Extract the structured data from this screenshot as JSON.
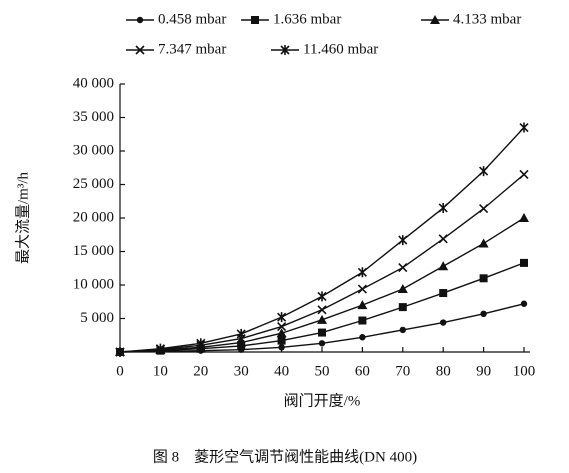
{
  "chart_data": {
    "type": "line",
    "caption": "图 8　菱形空气调节阀性能曲线(DN 400)",
    "x_label": "阀门开度/%",
    "y_label": "最大流量/m³/h",
    "x": [
      0,
      10,
      20,
      30,
      40,
      50,
      60,
      70,
      80,
      90,
      100
    ],
    "xlim": [
      0,
      100
    ],
    "xticks": [
      0,
      10,
      20,
      30,
      40,
      50,
      60,
      70,
      80,
      90,
      100
    ],
    "ylim": [
      0,
      40000
    ],
    "yticks": [
      {
        "value": 5000,
        "label": "5 000"
      },
      {
        "value": 10000,
        "label": "10 000"
      },
      {
        "value": 15000,
        "label": "15 000"
      },
      {
        "value": 20000,
        "label": "20 000"
      },
      {
        "value": 25000,
        "label": "25 000"
      },
      {
        "value": 30000,
        "label": "30 000"
      },
      {
        "value": 35000,
        "label": "35 000"
      },
      {
        "value": 40000,
        "label": "40 000"
      }
    ],
    "series": [
      {
        "name": "0.458 mbar",
        "color": "#111111",
        "marker": "circle",
        "values": [
          0,
          100,
          200,
          350,
          700,
          1300,
          2200,
          3300,
          4400,
          5700,
          7200
        ]
      },
      {
        "name": "1.636 mbar",
        "color": "#111111",
        "marker": "square",
        "values": [
          0,
          200,
          500,
          900,
          1700,
          2900,
          4700,
          6700,
          8800,
          11000,
          13300
        ]
      },
      {
        "name": "4.133 mbar",
        "color": "#111111",
        "marker": "triangle",
        "values": [
          0,
          300,
          700,
          1400,
          2800,
          4800,
          7000,
          9400,
          12800,
          16200,
          20000
        ]
      },
      {
        "name": "7.347 mbar",
        "color": "#111111",
        "marker": "x",
        "values": [
          0,
          400,
          1000,
          2000,
          3800,
          6300,
          9400,
          12600,
          16900,
          21400,
          26500
        ]
      },
      {
        "name": "11.460 mbar",
        "color": "#111111",
        "marker": "star",
        "values": [
          0,
          500,
          1300,
          2700,
          5200,
          8300,
          11900,
          16700,
          21500,
          27000,
          33500
        ]
      }
    ]
  }
}
